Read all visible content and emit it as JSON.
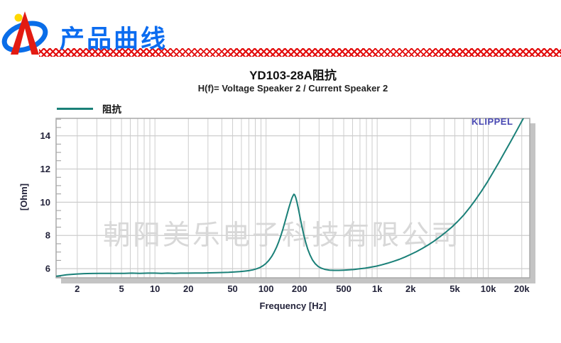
{
  "header": {
    "brand_title": "产品曲线"
  },
  "chart": {
    "title": "YD103-28A阻抗",
    "subtitle": "H(f)= Voltage Speaker 2 / Current Speaker 2",
    "legend_label": "阻抗",
    "klippel_mark": "KLIPPEL",
    "company_watermark": "朝阳美乐电子科技有限公司",
    "xlabel": "Frequency [Hz]",
    "ylabel": "[Ohm]"
  },
  "colors": {
    "brand_blue": "#0b6cf0",
    "checker_red": "#e20a0a",
    "curve_teal": "#1a8078",
    "klippel_blue": "#4747b2",
    "grid_gray": "#cdcdcd",
    "border_gray": "#a8a8a8",
    "shadow_gray": "#c4c4c4",
    "watermark_gray": "#d8d8d8",
    "tick_text": "#23233a"
  },
  "chart_data": {
    "type": "line",
    "title": "YD103-28A阻抗",
    "subtitle": "H(f)= Voltage Speaker 2 / Current Speaker 2",
    "xlabel": "Frequency [Hz]",
    "ylabel": "[Ohm]",
    "x_scale": "log",
    "grid": true,
    "legend_position": "top-left",
    "xlim": [
      1.29,
      23600
    ],
    "ylim": [
      5.45,
      15.05
    ],
    "x_tick_values": [
      2,
      5,
      10,
      20,
      50,
      100,
      200,
      500,
      1000,
      2000,
      5000,
      10000,
      20000
    ],
    "x_tick_labels": [
      "2",
      "5",
      "10",
      "20",
      "50",
      "100",
      "200",
      "500",
      "1k",
      "2k",
      "5k",
      "10k",
      "20k"
    ],
    "y_tick_values": [
      6,
      8,
      10,
      12,
      14
    ],
    "y_minor_step": 0.5,
    "series": [
      {
        "name": "阻抗",
        "color": "#1a8078",
        "peak": {
          "frequency_hz": 178,
          "impedance_ohm": 10.48
        },
        "points": [
          [
            1.3,
            5.55
          ],
          [
            1.45,
            5.59
          ],
          [
            1.6,
            5.63
          ],
          [
            1.8,
            5.66
          ],
          [
            2,
            5.68
          ],
          [
            2.3,
            5.7
          ],
          [
            2.7,
            5.71
          ],
          [
            3.2,
            5.72
          ],
          [
            3.8,
            5.72
          ],
          [
            4.5,
            5.72
          ],
          [
            5.3,
            5.72
          ],
          [
            6.2,
            5.73
          ],
          [
            7.3,
            5.72
          ],
          [
            8.6,
            5.73
          ],
          [
            10,
            5.73
          ],
          [
            11.5,
            5.72
          ],
          [
            13,
            5.73
          ],
          [
            15,
            5.72
          ],
          [
            17,
            5.73
          ],
          [
            20,
            5.73
          ],
          [
            23,
            5.74
          ],
          [
            27,
            5.74
          ],
          [
            31,
            5.75
          ],
          [
            36,
            5.76
          ],
          [
            41,
            5.77
          ],
          [
            46,
            5.78
          ],
          [
            52,
            5.8
          ],
          [
            58,
            5.82
          ],
          [
            64,
            5.85
          ],
          [
            70,
            5.88
          ],
          [
            76,
            5.93
          ],
          [
            82,
            5.99
          ],
          [
            88,
            6.07
          ],
          [
            94,
            6.18
          ],
          [
            100,
            6.32
          ],
          [
            106,
            6.5
          ],
          [
            112,
            6.72
          ],
          [
            118,
            6.98
          ],
          [
            124,
            7.28
          ],
          [
            130,
            7.62
          ],
          [
            136,
            8.0
          ],
          [
            142,
            8.4
          ],
          [
            148,
            8.82
          ],
          [
            154,
            9.24
          ],
          [
            160,
            9.64
          ],
          [
            166,
            9.99
          ],
          [
            171,
            10.25
          ],
          [
            175,
            10.4
          ],
          [
            178,
            10.48
          ],
          [
            181,
            10.44
          ],
          [
            185,
            10.28
          ],
          [
            190,
            9.98
          ],
          [
            196,
            9.56
          ],
          [
            203,
            9.04
          ],
          [
            210,
            8.55
          ],
          [
            218,
            8.06
          ],
          [
            227,
            7.6
          ],
          [
            237,
            7.18
          ],
          [
            249,
            6.81
          ],
          [
            262,
            6.52
          ],
          [
            277,
            6.3
          ],
          [
            295,
            6.13
          ],
          [
            316,
            6.02
          ],
          [
            342,
            5.95
          ],
          [
            373,
            5.91
          ],
          [
            410,
            5.9
          ],
          [
            452,
            5.9
          ],
          [
            500,
            5.91
          ],
          [
            556,
            5.93
          ],
          [
            620,
            5.95
          ],
          [
            695,
            5.99
          ],
          [
            780,
            6.03
          ],
          [
            875,
            6.09
          ],
          [
            980,
            6.15
          ],
          [
            1100,
            6.23
          ],
          [
            1240,
            6.33
          ],
          [
            1400,
            6.44
          ],
          [
            1580,
            6.56
          ],
          [
            1780,
            6.7
          ],
          [
            2000,
            6.86
          ],
          [
            2260,
            7.03
          ],
          [
            2550,
            7.22
          ],
          [
            2880,
            7.43
          ],
          [
            3250,
            7.66
          ],
          [
            3670,
            7.92
          ],
          [
            4150,
            8.2
          ],
          [
            4690,
            8.5
          ],
          [
            5300,
            8.84
          ],
          [
            6000,
            9.22
          ],
          [
            6780,
            9.66
          ],
          [
            7660,
            10.14
          ],
          [
            8650,
            10.65
          ],
          [
            9770,
            11.2
          ],
          [
            11000,
            11.78
          ],
          [
            12400,
            12.38
          ],
          [
            14000,
            13.0
          ],
          [
            15800,
            13.62
          ],
          [
            17800,
            14.25
          ],
          [
            20000,
            14.88
          ],
          [
            22500,
            15.5
          ]
        ]
      }
    ]
  }
}
